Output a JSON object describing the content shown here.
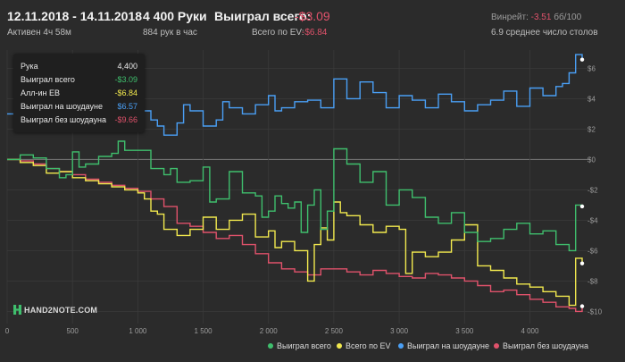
{
  "header": {
    "date_range": "12.11.2018 - 14.11.2018",
    "active": "Активен 4ч 58м",
    "hands": "4 400 Руки",
    "hands_per_hour": "884 рук в час",
    "won_label": "Выиграл всего:",
    "won_value": "-$3.09",
    "ev_label": "Всего по EV:",
    "ev_value": "-$6.84",
    "winrate_label": "Винрейт:",
    "winrate_value": "-3.51",
    "winrate_unit": "бб/100",
    "avg_tables": "6.9 среднее число столов"
  },
  "tooltip": {
    "rows": [
      {
        "label": "Рука",
        "value": "4,400",
        "color": "#e8e8e8"
      },
      {
        "label": "Выиграл всего",
        "value": "-$3.09",
        "color": "#3fbf6d"
      },
      {
        "label": "Алл-ин EB",
        "value": "-$6.84",
        "color": "#f2e94e"
      },
      {
        "label": "Выиграл на шоудауне",
        "value": "$6.57",
        "color": "#4a9ff5"
      },
      {
        "label": "Выиграл без шоудауна",
        "value": "-$9.66",
        "color": "#e0526b"
      }
    ]
  },
  "logo": "HAND2NOTE.COM",
  "colors": {
    "background": "#2b2b2b",
    "grid": "#3a3a3a",
    "zero": "#7a7a7a"
  },
  "chart_data": {
    "type": "line",
    "xlim": [
      0,
      4400
    ],
    "ylim": [
      -10.8,
      7.2
    ],
    "x_ticks": [
      0,
      500,
      1000,
      1500,
      2000,
      2500,
      3000,
      3500,
      4000
    ],
    "x_tick_labels": [
      "0",
      "500",
      "1 000",
      "1 500",
      "2 000",
      "2 500",
      "3 000",
      "3 500",
      "4 000"
    ],
    "y_ticks": [
      6,
      4,
      2,
      0,
      -2,
      -4,
      -6,
      -8,
      -10
    ],
    "y_tick_labels": [
      "$6",
      "$4",
      "$2",
      "$0",
      "-$2",
      "-$4",
      "-$6",
      "-$8",
      "-$10"
    ],
    "grid": true,
    "legend_position": "bottom-right",
    "series": [
      {
        "name": "Выиграл всего",
        "color": "#3fbf6d",
        "x": [
          0,
          100,
          200,
          300,
          400,
          450,
          500,
          550,
          600,
          700,
          800,
          850,
          900,
          1000,
          1100,
          1200,
          1250,
          1300,
          1400,
          1500,
          1550,
          1600,
          1700,
          1800,
          1900,
          1950,
          2000,
          2050,
          2100,
          2150,
          2200,
          2250,
          2300,
          2350,
          2400,
          2450,
          2500,
          2600,
          2700,
          2800,
          2900,
          3000,
          3100,
          3200,
          3300,
          3400,
          3500,
          3600,
          3700,
          3800,
          3900,
          4000,
          4100,
          4200,
          4300,
          4350,
          4400
        ],
        "y": [
          0,
          0.3,
          0.1,
          -0.6,
          -1.2,
          -1.0,
          0.5,
          -0.5,
          -0.3,
          0.2,
          0.4,
          1.2,
          0.6,
          0.6,
          -0.6,
          -1.0,
          -0.6,
          -1.5,
          -1.4,
          -0.5,
          -2.8,
          -2.6,
          -0.8,
          -2.2,
          -2.4,
          -3.8,
          -3.4,
          -2.4,
          -2.9,
          -3.2,
          -2.8,
          -4.8,
          -3.0,
          -2.0,
          -4.6,
          -3.4,
          0.7,
          -0.3,
          -1.5,
          -0.8,
          -3.0,
          -2.0,
          -2.5,
          -3.8,
          -4.2,
          -3.5,
          -4.8,
          -5.4,
          -5.2,
          -4.6,
          -4.2,
          -4.9,
          -4.7,
          -5.6,
          -6.0,
          -3.0,
          -3.09
        ]
      },
      {
        "name": "Всего по EV",
        "color": "#f2e94e",
        "x": [
          0,
          100,
          200,
          300,
          400,
          500,
          600,
          700,
          800,
          900,
          1000,
          1050,
          1100,
          1150,
          1200,
          1300,
          1400,
          1500,
          1600,
          1700,
          1800,
          1900,
          2000,
          2050,
          2100,
          2200,
          2300,
          2350,
          2400,
          2450,
          2500,
          2550,
          2600,
          2700,
          2800,
          2900,
          3000,
          3050,
          3100,
          3200,
          3300,
          3400,
          3500,
          3600,
          3700,
          3800,
          3900,
          4000,
          4100,
          4200,
          4300,
          4350,
          4400
        ],
        "y": [
          0,
          -0.2,
          -0.4,
          -0.9,
          -0.8,
          -1.2,
          -1.4,
          -1.6,
          -1.8,
          -2.0,
          -2.2,
          -2.6,
          -3.4,
          -3.6,
          -4.6,
          -5.0,
          -4.6,
          -3.8,
          -4.6,
          -4.0,
          -3.6,
          -5.1,
          -4.7,
          -5.8,
          -5.4,
          -6.0,
          -8.0,
          -5.6,
          -4.5,
          -5.3,
          -2.8,
          -3.5,
          -3.7,
          -4.3,
          -4.8,
          -4.4,
          -4.6,
          -7.5,
          -6.1,
          -6.4,
          -6.1,
          -5.3,
          -4.3,
          -7.0,
          -7.3,
          -7.8,
          -8.2,
          -8.4,
          -8.7,
          -9.0,
          -9.6,
          -6.5,
          -6.84
        ]
      },
      {
        "name": "Выиграл на шоудауне",
        "color": "#4a9ff5",
        "x": [
          0,
          100,
          200,
          300,
          400,
          500,
          550,
          600,
          700,
          800,
          850,
          900,
          1000,
          1100,
          1150,
          1200,
          1300,
          1350,
          1400,
          1500,
          1600,
          1650,
          1700,
          1800,
          1900,
          2000,
          2050,
          2100,
          2200,
          2300,
          2400,
          2500,
          2600,
          2700,
          2800,
          2900,
          3000,
          3100,
          3200,
          3300,
          3400,
          3500,
          3600,
          3700,
          3800,
          3900,
          4000,
          4100,
          4200,
          4250,
          4300,
          4350,
          4400
        ],
        "y": [
          3.0,
          3.6,
          3.2,
          4.4,
          3.8,
          3.4,
          3.0,
          2.6,
          3.0,
          2.6,
          3.6,
          3.4,
          3.2,
          2.6,
          2.2,
          1.6,
          2.4,
          3.6,
          3.2,
          2.2,
          2.6,
          3.8,
          3.4,
          3.0,
          3.6,
          4.2,
          3.2,
          3.4,
          3.8,
          3.9,
          3.4,
          5.3,
          4.0,
          5.1,
          4.4,
          3.4,
          4.2,
          3.9,
          3.4,
          4.3,
          3.8,
          3.2,
          3.6,
          3.9,
          4.5,
          3.5,
          4.7,
          4.2,
          4.8,
          5.0,
          5.7,
          6.9,
          6.57
        ]
      },
      {
        "name": "Выиграл без шоудауна",
        "color": "#e0526b",
        "x": [
          0,
          100,
          200,
          300,
          400,
          500,
          600,
          700,
          800,
          900,
          1000,
          1100,
          1200,
          1300,
          1400,
          1500,
          1600,
          1700,
          1800,
          1900,
          2000,
          2100,
          2200,
          2300,
          2400,
          2500,
          2600,
          2700,
          2800,
          2900,
          3000,
          3100,
          3200,
          3300,
          3400,
          3500,
          3600,
          3700,
          3800,
          3900,
          4000,
          4100,
          4200,
          4300,
          4350,
          4400
        ],
        "y": [
          0,
          -0.1,
          -0.3,
          -0.6,
          -0.8,
          -1.0,
          -1.3,
          -1.5,
          -1.7,
          -1.9,
          -2.1,
          -2.6,
          -3.1,
          -4.2,
          -4.4,
          -4.8,
          -5.2,
          -5.0,
          -5.6,
          -6.2,
          -6.8,
          -7.2,
          -7.4,
          -7.6,
          -7.2,
          -7.2,
          -7.4,
          -7.6,
          -7.3,
          -7.5,
          -7.7,
          -7.8,
          -7.5,
          -7.6,
          -7.8,
          -8.0,
          -8.3,
          -8.7,
          -8.6,
          -8.9,
          -9.2,
          -9.4,
          -9.7,
          -9.8,
          -10.0,
          -9.66
        ]
      }
    ]
  }
}
